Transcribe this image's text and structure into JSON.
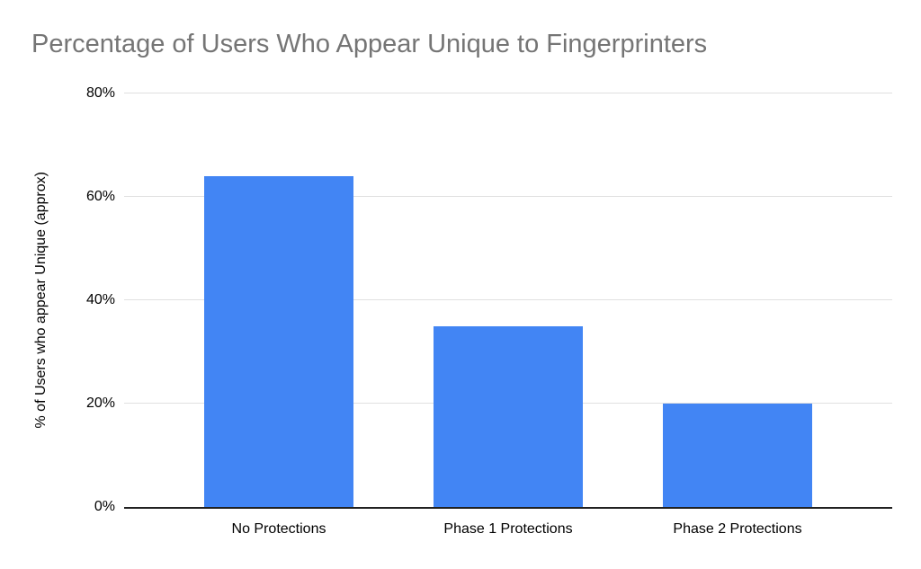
{
  "chart_data": {
    "type": "bar",
    "title": "Percentage of Users Who Appear Unique to Fingerprinters",
    "xlabel": "",
    "ylabel": "% of Users who appear Unique (approx)",
    "categories": [
      "No Protections",
      "Phase 1 Protections",
      "Phase 2 Protections"
    ],
    "values": [
      64,
      35,
      20
    ],
    "ylim": [
      0,
      80
    ],
    "yticks": [
      {
        "value": 0,
        "label": "0%"
      },
      {
        "value": 20,
        "label": "20%"
      },
      {
        "value": 40,
        "label": "40%"
      },
      {
        "value": 60,
        "label": "60%"
      },
      {
        "value": 80,
        "label": "80%"
      }
    ],
    "grid": true,
    "legend_position": "none",
    "colors": {
      "bar": "#4285F4",
      "title_text": "#757575",
      "axis_text": "#000000",
      "gridline": "#e0e0e0",
      "axis_line": "#212121",
      "background": "#ffffff"
    }
  }
}
